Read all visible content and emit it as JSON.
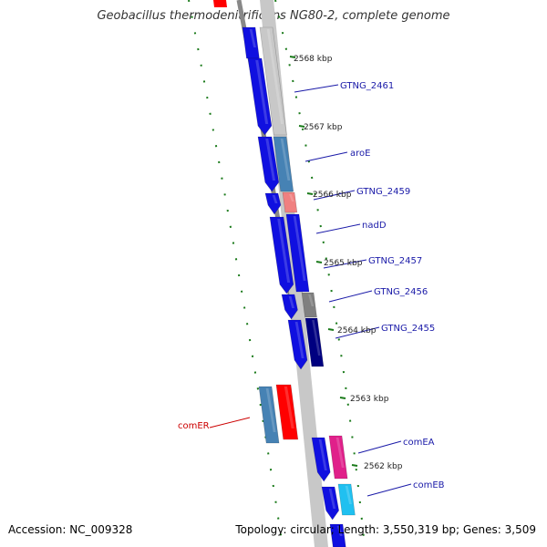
{
  "title": "Geobacillus thermodenitrificans NG80-2, complete genome",
  "footer": {
    "accession": "Accession: NC_009328",
    "topology": "Topology: circular; Length: 3,550,319 bp; Genes: 3,509"
  },
  "colors": {
    "backbone": "#888888",
    "tick": "#1a7a1a",
    "gene_label": "#1a1aa8",
    "rna_label": "#cc0000",
    "cds_blue": "#1010e0",
    "cds_steel": "#4682b4",
    "cds_red": "#ff0000",
    "cds_pink": "#f08080",
    "cds_magenta": "#e0208a",
    "cds_cyan": "#20c0f0",
    "cds_gray": "#808080",
    "cds_navy": "#000080",
    "cds_lightgray": "#c8c8c8"
  },
  "position_labels": [
    "2568 kbp",
    "2567 kbp",
    "2566 kbp",
    "2565 kbp",
    "2564 kbp",
    "2563 kbp",
    "2562 kbp"
  ],
  "gene_labels": [
    "GTNG_2461",
    "aroE",
    "GTNG_2459",
    "nadD",
    "GTNG_2457",
    "GTNG_2456",
    "GTNG_2455",
    "comEA",
    "comEB"
  ],
  "rna_labels": [
    "comER"
  ]
}
